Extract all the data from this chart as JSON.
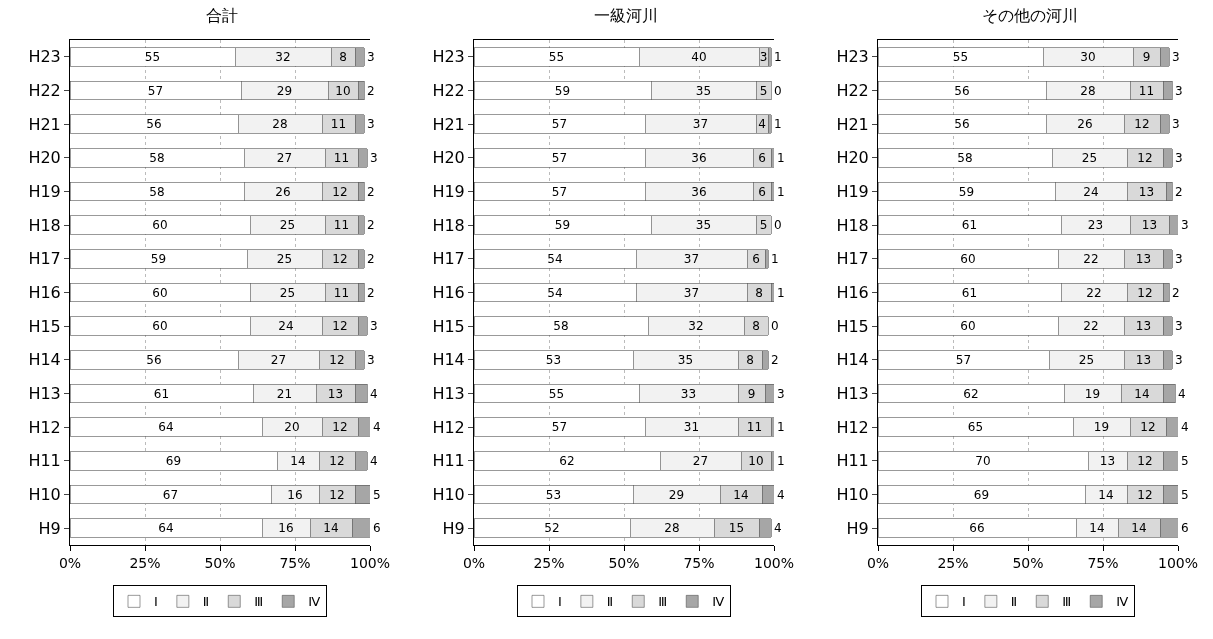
{
  "chart_data": [
    {
      "type": "bar",
      "title": "合計",
      "orientation": "horizontal",
      "stacked": true,
      "data_labels": true,
      "grid": "x",
      "legend": "bottom",
      "xlim": [
        0,
        100
      ],
      "xticks": [
        {
          "value": 0,
          "label": "0%"
        },
        {
          "value": 25,
          "label": "25%"
        },
        {
          "value": 50,
          "label": "50%"
        },
        {
          "value": 75,
          "label": "75%"
        },
        {
          "value": 100,
          "label": "100%"
        }
      ],
      "categories": [
        "H23",
        "H22",
        "H21",
        "H20",
        "H19",
        "H18",
        "H17",
        "H16",
        "H15",
        "H14",
        "H13",
        "H12",
        "H11",
        "H10",
        "H9"
      ],
      "series": [
        {
          "name": "Ⅰ",
          "color": "#ffffff",
          "values": [
            55,
            57,
            56,
            58,
            58,
            60,
            59,
            60,
            60,
            56,
            61,
            64,
            69,
            67,
            64
          ]
        },
        {
          "name": "Ⅱ",
          "color": "#f2f2f2",
          "values": [
            32,
            29,
            28,
            27,
            26,
            25,
            25,
            25,
            24,
            27,
            21,
            20,
            14,
            16,
            16
          ]
        },
        {
          "name": "Ⅲ",
          "color": "#d9d9d9",
          "values": [
            8,
            10,
            11,
            11,
            12,
            11,
            12,
            11,
            12,
            12,
            13,
            12,
            12,
            12,
            14
          ]
        },
        {
          "name": "Ⅳ",
          "color": "#a6a6a6",
          "values": [
            3,
            2,
            3,
            3,
            2,
            2,
            2,
            2,
            3,
            3,
            4,
            4,
            4,
            5,
            6
          ]
        }
      ]
    },
    {
      "type": "bar",
      "title": "一級河川",
      "orientation": "horizontal",
      "stacked": true,
      "data_labels": true,
      "grid": "x",
      "legend": "bottom",
      "xlim": [
        0,
        100
      ],
      "xticks": [
        {
          "value": 0,
          "label": "0%"
        },
        {
          "value": 25,
          "label": "25%"
        },
        {
          "value": 50,
          "label": "50%"
        },
        {
          "value": 75,
          "label": "75%"
        },
        {
          "value": 100,
          "label": "100%"
        }
      ],
      "categories": [
        "H23",
        "H22",
        "H21",
        "H20",
        "H19",
        "H18",
        "H17",
        "H16",
        "H15",
        "H14",
        "H13",
        "H12",
        "H11",
        "H10",
        "H9"
      ],
      "series": [
        {
          "name": "Ⅰ",
          "color": "#ffffff",
          "values": [
            55,
            59,
            57,
            57,
            57,
            59,
            54,
            54,
            58,
            53,
            55,
            57,
            62,
            53,
            52
          ]
        },
        {
          "name": "Ⅱ",
          "color": "#f2f2f2",
          "values": [
            40,
            35,
            37,
            36,
            36,
            35,
            37,
            37,
            32,
            35,
            33,
            31,
            27,
            29,
            28
          ]
        },
        {
          "name": "Ⅲ",
          "color": "#d9d9d9",
          "values": [
            3,
            5,
            4,
            6,
            6,
            5,
            6,
            8,
            8,
            8,
            9,
            11,
            10,
            14,
            15
          ]
        },
        {
          "name": "Ⅳ",
          "color": "#a6a6a6",
          "values": [
            1,
            0,
            1,
            1,
            1,
            0,
            1,
            1,
            0,
            2,
            3,
            1,
            1,
            4,
            4
          ]
        }
      ]
    },
    {
      "type": "bar",
      "title": "その他の河川",
      "orientation": "horizontal",
      "stacked": true,
      "data_labels": true,
      "grid": "x",
      "legend": "bottom",
      "xlim": [
        0,
        100
      ],
      "xticks": [
        {
          "value": 0,
          "label": "0%"
        },
        {
          "value": 25,
          "label": "25%"
        },
        {
          "value": 50,
          "label": "50%"
        },
        {
          "value": 75,
          "label": "75%"
        },
        {
          "value": 100,
          "label": "100%"
        }
      ],
      "categories": [
        "H23",
        "H22",
        "H21",
        "H20",
        "H19",
        "H18",
        "H17",
        "H16",
        "H15",
        "H14",
        "H13",
        "H12",
        "H11",
        "H10",
        "H9"
      ],
      "series": [
        {
          "name": "Ⅰ",
          "color": "#ffffff",
          "values": [
            55,
            56,
            56,
            58,
            59,
            61,
            60,
            61,
            60,
            57,
            62,
            65,
            70,
            69,
            66
          ]
        },
        {
          "name": "Ⅱ",
          "color": "#f2f2f2",
          "values": [
            30,
            28,
            26,
            25,
            24,
            23,
            22,
            22,
            22,
            25,
            19,
            19,
            13,
            14,
            14
          ]
        },
        {
          "name": "Ⅲ",
          "color": "#d9d9d9",
          "values": [
            9,
            11,
            12,
            12,
            13,
            13,
            13,
            12,
            13,
            13,
            14,
            12,
            12,
            12,
            14
          ]
        },
        {
          "name": "Ⅳ",
          "color": "#a6a6a6",
          "values": [
            3,
            3,
            3,
            3,
            2,
            3,
            3,
            2,
            3,
            3,
            4,
            4,
            5,
            5,
            6
          ]
        }
      ]
    }
  ]
}
